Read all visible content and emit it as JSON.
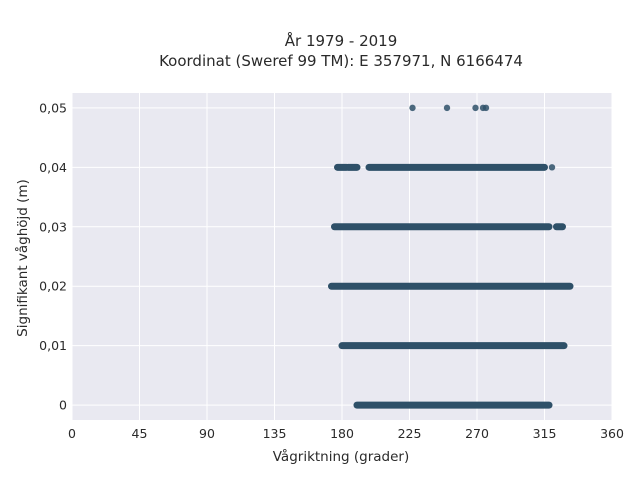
{
  "chart_data": {
    "type": "scatter",
    "title": "År 1979 - 2019",
    "subtitle": "Koordinat (Sweref 99 TM): E 357971, N 6166474",
    "xlabel": "Vågriktning (grader)",
    "ylabel": "Signifikant våghöjd (m)",
    "xlim": [
      0,
      360
    ],
    "ylim": [
      -0.0025,
      0.0525
    ],
    "xticks": [
      0,
      45,
      90,
      135,
      180,
      225,
      270,
      315,
      360
    ],
    "xtick_labels": [
      "0",
      "45",
      "90",
      "135",
      "180",
      "225",
      "270",
      "315",
      "360"
    ],
    "yticks": [
      0,
      0.01,
      0.02,
      0.03,
      0.04,
      0.05
    ],
    "ytick_labels": [
      "0",
      "0,01",
      "0,02",
      "0,03",
      "0,04",
      "0,05"
    ],
    "grid": true,
    "background": "#e9e9f1",
    "marker_color": "#2e5068",
    "bands": [
      {
        "y": 0.0,
        "x_ranges": [
          [
            190,
            318
          ]
        ]
      },
      {
        "y": 0.01,
        "x_ranges": [
          [
            180,
            328
          ]
        ]
      },
      {
        "y": 0.02,
        "x_ranges": [
          [
            173,
            332
          ]
        ]
      },
      {
        "y": 0.03,
        "x_ranges": [
          [
            175,
            318
          ],
          [
            323,
            327
          ]
        ]
      },
      {
        "y": 0.04,
        "x_ranges": [
          [
            177,
            183
          ],
          [
            184,
            190
          ],
          [
            198,
            315
          ]
        ]
      },
      {
        "y": 0.05,
        "x_ranges": []
      }
    ],
    "points": [
      {
        "x": 177,
        "y": 0.04
      },
      {
        "x": 181,
        "y": 0.04
      },
      {
        "x": 185,
        "y": 0.04
      },
      {
        "x": 188,
        "y": 0.04
      },
      {
        "x": 190,
        "y": 0.04
      },
      {
        "x": 320,
        "y": 0.04
      },
      {
        "x": 175,
        "y": 0.03
      },
      {
        "x": 323,
        "y": 0.03
      },
      {
        "x": 326,
        "y": 0.03
      },
      {
        "x": 173,
        "y": 0.02
      },
      {
        "x": 332,
        "y": 0.02
      },
      {
        "x": 327,
        "y": 0.01
      },
      {
        "x": 227,
        "y": 0.05
      },
      {
        "x": 250,
        "y": 0.05
      },
      {
        "x": 269,
        "y": 0.05
      },
      {
        "x": 274,
        "y": 0.05
      },
      {
        "x": 276,
        "y": 0.05
      }
    ]
  }
}
